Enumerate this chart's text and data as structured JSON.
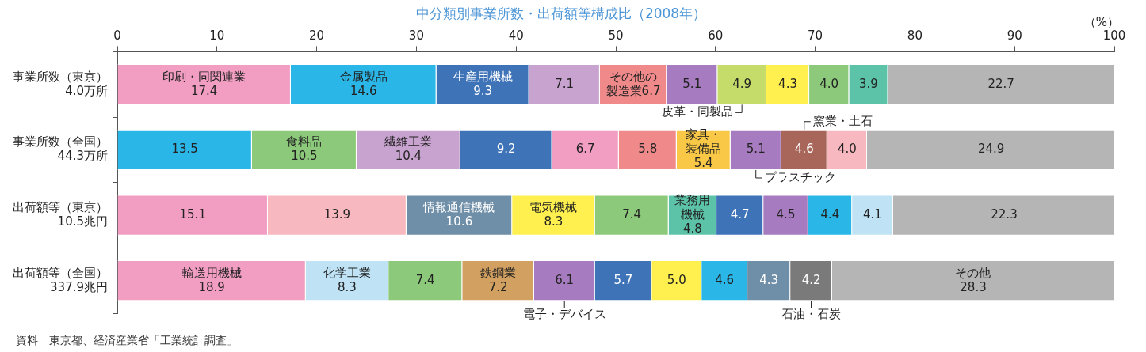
{
  "chart_data": {
    "type": "bar",
    "orientation": "horizontal",
    "stacked": true,
    "title": "中分類別事業所数・出荷額等構成比（2008年）",
    "xlabel": "（%）",
    "categories": [
      "事業所数（東京）\n4.0万所",
      "事業所数（全国）\n44.3万所",
      "出荷額等（東京）\n10.5兆円",
      "出荷額等（全国）\n337.9兆円"
    ],
    "xlim": [
      0,
      100
    ],
    "xticks": [
      0,
      10,
      20,
      30,
      40,
      50,
      60,
      70,
      80,
      90,
      100
    ],
    "grid": false,
    "legend": false,
    "series": [
      {
        "values": [
          17.4,
          13.5,
          15.1,
          18.9
        ],
        "colors": [
          "#f19ec2",
          "#2bb6e8",
          "#f19ec2",
          "#f19ec2"
        ],
        "value_labels": [
          "印刷・同関連業\n17.4",
          "13.5",
          "15.1",
          "輸送用機械\n18.9"
        ]
      },
      {
        "values": [
          14.6,
          10.5,
          13.9,
          8.3
        ],
        "colors": [
          "#2bb6e8",
          "#8cc97a",
          "#f7b8c0",
          "#bfe3f5"
        ],
        "value_labels": [
          "金属製品\n14.6",
          "食料品\n10.5",
          "13.9",
          "化学工業\n8.3"
        ]
      },
      {
        "values": [
          9.3,
          10.4,
          10.6,
          7.4
        ],
        "colors": [
          "#3f73b8",
          "#c9a3d0",
          "#6f8ea8",
          "#8cc97a"
        ],
        "value_labels": [
          "生産用機械\n9.3",
          "繊維工業\n10.4",
          "情報通信機械\n10.6",
          "7.4"
        ]
      },
      {
        "values": [
          7.1,
          9.2,
          8.3,
          7.2
        ],
        "colors": [
          "#c9a3d0",
          "#3f73b8",
          "#fff04f",
          "#d2a060"
        ],
        "value_labels": [
          "7.1",
          "9.2",
          "電気機械\n8.3",
          "鉄鋼業\n7.2"
        ]
      },
      {
        "values": [
          6.7,
          6.7,
          7.4,
          6.1
        ],
        "colors": [
          "#f08a8a",
          "#f19ec2",
          "#8cc97a",
          "#a77bbf"
        ],
        "value_labels": [
          "その他の製造業6.7",
          "6.7",
          "7.4",
          "6.1"
        ]
      },
      {
        "values": [
          5.1,
          5.8,
          4.8,
          5.7
        ],
        "colors": [
          "#a77bbf",
          "#f08a8a",
          "#5cc3a8",
          "#3f73b8"
        ],
        "value_labels": [
          "5.1",
          "5.8",
          "業務用機械\n4.8",
          "5.7"
        ]
      },
      {
        "values": [
          4.9,
          5.4,
          4.7,
          5.0
        ],
        "colors": [
          "#c6dc6a",
          "#f9c846",
          "#3f73b8",
          "#fff04f"
        ],
        "value_labels": [
          "4.9",
          "家具・装備品\n5.4",
          "4.7",
          "5.0"
        ]
      },
      {
        "values": [
          4.3,
          5.1,
          4.5,
          4.6
        ],
        "colors": [
          "#fff04f",
          "#a77bbf",
          "#a77bbf",
          "#2bb6e8"
        ],
        "value_labels": [
          "4.3",
          "5.1",
          "4.5",
          "4.6"
        ]
      },
      {
        "values": [
          4.0,
          4.6,
          4.4,
          4.3
        ],
        "colors": [
          "#8cc97a",
          "#a8665a",
          "#2bb6e8",
          "#6f8ea8"
        ],
        "value_labels": [
          "4.0",
          "4.6",
          "4.4",
          "4.3"
        ]
      },
      {
        "values": [
          3.9,
          4.0,
          4.1,
          4.2
        ],
        "colors": [
          "#5cc3a8",
          "#f7b8c0",
          "#bfe3f5",
          "#7a7a7a"
        ],
        "value_labels": [
          "3.9",
          "4.0",
          "4.1",
          "4.2"
        ]
      },
      {
        "values": [
          22.7,
          24.9,
          22.3,
          28.3
        ],
        "colors": [
          "#b5b5b5",
          "#b5b5b5",
          "#b5b5b5",
          "#b5b5b5"
        ],
        "value_labels": [
          "22.7",
          "24.9",
          "22.3",
          "その他\n28.3"
        ]
      }
    ],
    "annotations": [
      "皮革・同製品",
      "プラスチック",
      "窯業・土石",
      "電子・デバイス",
      "石油・石炭",
      "資料　東京都、経済産業省「工業統計調査」"
    ]
  }
}
